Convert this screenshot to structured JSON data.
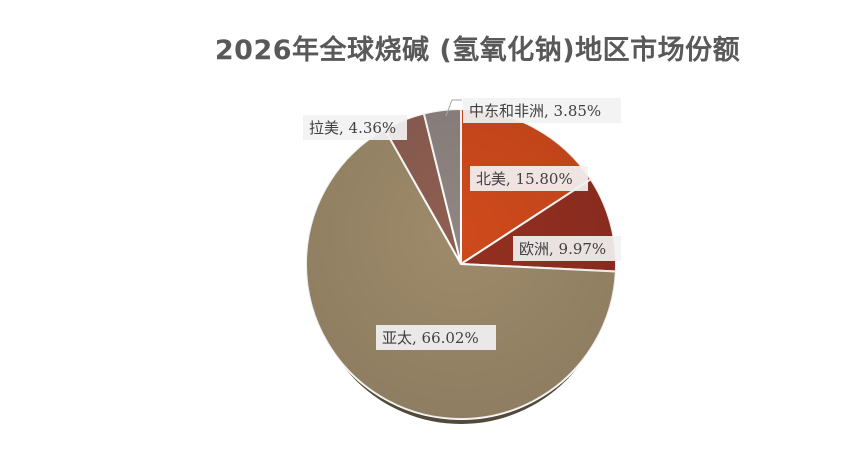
{
  "chart_data": {
    "type": "pie",
    "title": "2026年全球烧碱 (氢氧化钠)地区市场份额",
    "slices": [
      {
        "name": "北美",
        "value": 15.8,
        "label": "北美, 15.80%",
        "color": "#cf4a1c"
      },
      {
        "name": "欧洲",
        "value": 9.97,
        "label": "欧洲, 9.97%",
        "color": "#942f21"
      },
      {
        "name": "亚太",
        "value": 66.02,
        "label": "亚太, 66.02%",
        "color": "#9e8b6b"
      },
      {
        "name": "拉美",
        "value": 4.36,
        "label": "拉美, 4.36%",
        "color": "#8e5f52"
      },
      {
        "name": "中东和非洲",
        "value": 3.85,
        "label": "中东和非洲, 3.85%",
        "color": "#8f8583"
      }
    ],
    "start_angle_deg": 0,
    "direction": "clockwise",
    "legend": "none",
    "data_labels": "category, percent"
  }
}
